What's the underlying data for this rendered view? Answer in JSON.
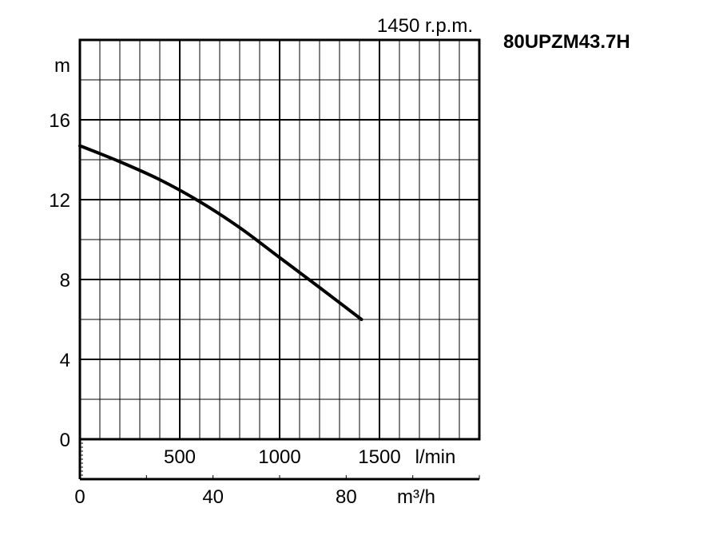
{
  "model": "80UPZM43.7H",
  "speed": "1450 r.p.m.",
  "chart_data": {
    "type": "line",
    "y_unit": "m",
    "y_ticks": [
      "0",
      "4",
      "8",
      "12",
      "16"
    ],
    "ylim": [
      0,
      20
    ],
    "x_lpm_unit": "l/min",
    "x_lpm_ticks": [
      "500",
      "1000",
      "1500"
    ],
    "xlim_lpm": [
      0,
      2000
    ],
    "x_m3h_unit": "m³/h",
    "x_m3h_ticks": [
      "0",
      "40",
      "80"
    ],
    "grid": true,
    "series": [
      {
        "x_lpm": [
          0,
          200,
          400,
          600,
          800,
          1000,
          1200,
          1410
        ],
        "y_m": [
          14.7,
          13.9,
          13.0,
          11.9,
          10.6,
          9.1,
          7.6,
          6.0
        ]
      }
    ]
  }
}
